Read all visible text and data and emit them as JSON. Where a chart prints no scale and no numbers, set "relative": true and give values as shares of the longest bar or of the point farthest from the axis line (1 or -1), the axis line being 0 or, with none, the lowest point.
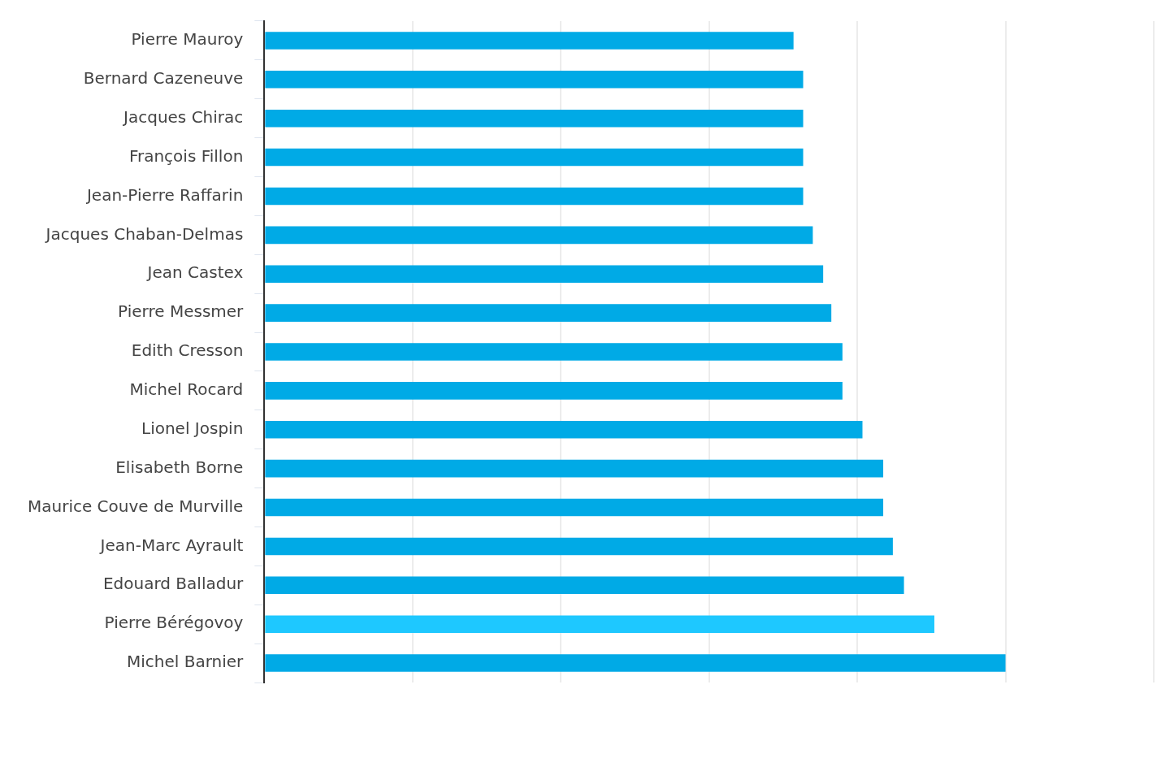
{
  "chart_data": {
    "type": "bar",
    "orientation": "horizontal",
    "relative": true,
    "grid": "x",
    "categories": [
      "Pierre Mauroy",
      "Bernard Cazeneuve",
      "Jacques Chirac",
      "François Fillon",
      "Jean-Pierre Raffarin",
      "Jacques Chaban-Delmas",
      "Jean Castex",
      "Pierre Messmer",
      "Edith Cresson",
      "Michel Rocard",
      "Lionel Jospin",
      "Elisabeth Borne",
      "Maurice Couve de Murville",
      "Jean-Marc Ayrault",
      "Edouard Balladur",
      "Pierre Bérégovoy",
      "Michel Barnier"
    ],
    "values": [
      0.714,
      0.727,
      0.727,
      0.727,
      0.727,
      0.74,
      0.754,
      0.765,
      0.78,
      0.78,
      0.807,
      0.835,
      0.835,
      0.848,
      0.863,
      0.904,
      1
    ],
    "colors": [
      "#00aae6",
      "#00aae6",
      "#00aae6",
      "#00aae6",
      "#00aae6",
      "#00aae6",
      "#00aae6",
      "#00aae6",
      "#00aae6",
      "#00aae6",
      "#00aae6",
      "#00aae6",
      "#00aae6",
      "#00aae6",
      "#00aae6",
      "#1ec8ff",
      "#00aae6"
    ]
  }
}
